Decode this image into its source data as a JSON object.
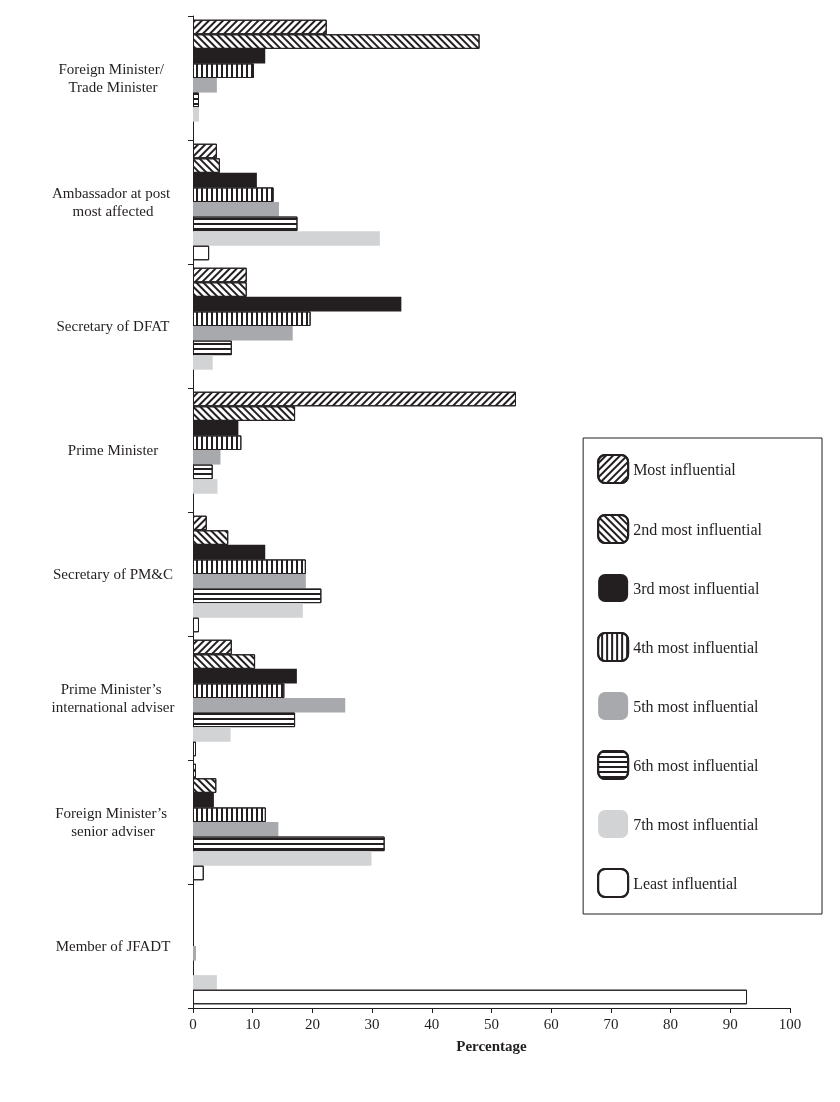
{
  "chart_data": {
    "type": "bar",
    "orientation": "horizontal",
    "xlabel": "Percentage",
    "categories": [
      "Foreign Minister/ Trade Minister",
      "Ambassador at post most affected",
      "Secretary of DFAT",
      "Prime Minister",
      "Secretary of PM&C",
      "Prime Minister’s international adviser",
      "Foreign Minister’s senior adviser",
      "Member of JFADT"
    ],
    "series": [
      {
        "name": "Most influential",
        "color": "#ffffff",
        "values": [
          22.4,
          4.0,
          9.0,
          54.1,
          2.3,
          6.5,
          0.3,
          0
        ]
      },
      {
        "name": "2nd most influential",
        "color": "#ffffff",
        "values": [
          48.0,
          4.5,
          9.0,
          17.1,
          5.9,
          10.4,
          3.9,
          0
        ]
      },
      {
        "name": "3rd most influential",
        "color": "#231f20",
        "values": [
          12.1,
          10.7,
          34.9,
          7.6,
          12.1,
          17.4,
          3.5,
          0
        ]
      },
      {
        "name": "4th most influential",
        "color": "#ffffff",
        "values": [
          10.2,
          13.5,
          19.7,
          8.1,
          18.9,
          15.3,
          12.2,
          0
        ]
      },
      {
        "name": "5th most influential",
        "color": "#a7a9ac",
        "values": [
          4.0,
          14.4,
          16.7,
          4.6,
          18.9,
          25.5,
          14.3,
          0.4
        ]
      },
      {
        "name": "6th most influential",
        "color": "#ffffff",
        "values": [
          1.0,
          17.5,
          6.5,
          3.3,
          21.5,
          17.1,
          32.1,
          0
        ]
      },
      {
        "name": "7th most influential",
        "color": "#d1d3d4",
        "values": [
          1.0,
          31.3,
          3.3,
          4.1,
          18.4,
          6.3,
          29.9,
          4.0
        ]
      },
      {
        "name": "Least influential",
        "color": "#ffffff",
        "values": [
          0,
          2.7,
          0,
          0,
          1.0,
          0.4,
          1.8,
          92.8
        ]
      }
    ],
    "xlim": [
      0,
      100
    ],
    "xticks": [
      0,
      10,
      20,
      30,
      40,
      50,
      60,
      70,
      80,
      90,
      100
    ],
    "grid": false,
    "legend": "right"
  }
}
